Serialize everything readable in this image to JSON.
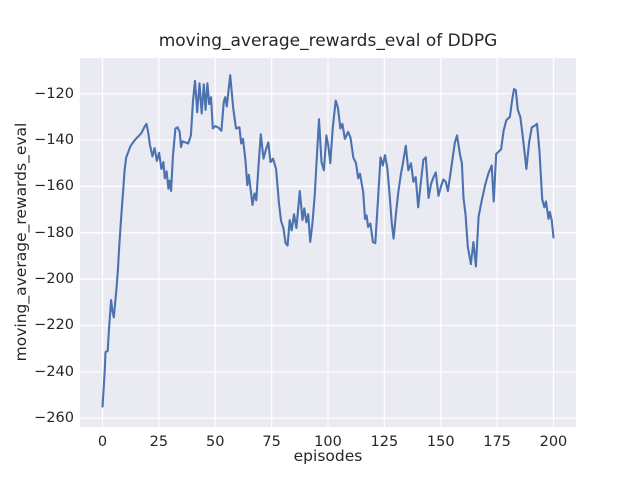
{
  "figure": {
    "title": "moving_average_rewards_eval of DDPG",
    "xlabel": "episodes",
    "ylabel": "moving_average_rewards_eval"
  },
  "chart_data": {
    "type": "line",
    "title": "moving_average_rewards_eval of DDPG",
    "xlabel": "episodes",
    "ylabel": "moving_average_rewards_eval",
    "xlim": [
      -10,
      210
    ],
    "ylim": [
      -263.8,
      -104.6
    ],
    "xticks": [
      0,
      25,
      50,
      75,
      100,
      125,
      150,
      175,
      200
    ],
    "yticks": [
      -120,
      -140,
      -160,
      -180,
      -200,
      -220,
      -240,
      -260
    ],
    "grid": true,
    "legend": false,
    "plot_bg": "#EAEAF2",
    "grid_color": "#FFFFFF",
    "text_color": "#262626",
    "series": [
      {
        "name": "moving_average_rewards_eval",
        "color": "#4C72B0",
        "linewidth": 2.1,
        "points": [
          [
            0,
            -255
          ],
          [
            0.5,
            -247
          ],
          [
            1,
            -239
          ],
          [
            1.3,
            -231.5
          ],
          [
            2.3,
            -231
          ],
          [
            2.8,
            -222
          ],
          [
            3.8,
            -209
          ],
          [
            4.3,
            -213
          ],
          [
            5,
            -216.5
          ],
          [
            5.6,
            -210
          ],
          [
            6.2,
            -204
          ],
          [
            6.8,
            -196
          ],
          [
            7.4,
            -186
          ],
          [
            8,
            -177
          ],
          [
            8.6,
            -169
          ],
          [
            9.2,
            -161
          ],
          [
            9.8,
            -153
          ],
          [
            10.5,
            -147.5
          ],
          [
            11.3,
            -145.5
          ],
          [
            12.2,
            -143
          ],
          [
            13.2,
            -141.5
          ],
          [
            14.3,
            -140
          ],
          [
            15.3,
            -139
          ],
          [
            16.3,
            -138
          ],
          [
            17.2,
            -137
          ],
          [
            18,
            -135.5
          ],
          [
            18.8,
            -134
          ],
          [
            19.5,
            -133
          ],
          [
            20.3,
            -137
          ],
          [
            21,
            -142
          ],
          [
            22.1,
            -147
          ],
          [
            23.1,
            -143.5
          ],
          [
            24.1,
            -149
          ],
          [
            25.1,
            -145.5
          ],
          [
            26.1,
            -152.5
          ],
          [
            27,
            -149.5
          ],
          [
            27.6,
            -156.5
          ],
          [
            28.4,
            -153.5
          ],
          [
            29.2,
            -161
          ],
          [
            29.8,
            -157.5
          ],
          [
            30.4,
            -162
          ],
          [
            31.2,
            -147
          ],
          [
            32.3,
            -135
          ],
          [
            33.3,
            -134.5
          ],
          [
            34.2,
            -136.5
          ],
          [
            34.8,
            -143
          ],
          [
            35.5,
            -140.5
          ],
          [
            36.7,
            -141
          ],
          [
            38,
            -141.5
          ],
          [
            39.2,
            -138
          ],
          [
            40.1,
            -123
          ],
          [
            41,
            -114.5
          ],
          [
            42,
            -128
          ],
          [
            43,
            -115.5
          ],
          [
            44,
            -128.5
          ],
          [
            44.9,
            -116
          ],
          [
            45.7,
            -127
          ],
          [
            46.5,
            -115.5
          ],
          [
            47.3,
            -124.5
          ],
          [
            48.1,
            -121.5
          ],
          [
            48.9,
            -135
          ],
          [
            50,
            -134
          ],
          [
            51.2,
            -134.5
          ],
          [
            52.7,
            -136
          ],
          [
            53.8,
            -123.5
          ],
          [
            54.4,
            -121.5
          ],
          [
            55.1,
            -125.5
          ],
          [
            56.6,
            -112
          ],
          [
            58,
            -126.5
          ],
          [
            59.2,
            -135
          ],
          [
            60.7,
            -134.5
          ],
          [
            61.5,
            -141.5
          ],
          [
            62.3,
            -139.5
          ],
          [
            63.4,
            -149
          ],
          [
            64.2,
            -159.5
          ],
          [
            64.9,
            -155
          ],
          [
            65.6,
            -160.5
          ],
          [
            66.5,
            -168
          ],
          [
            67.4,
            -163
          ],
          [
            68.2,
            -166
          ],
          [
            69.1,
            -152.5
          ],
          [
            70.2,
            -137.5
          ],
          [
            71.4,
            -148
          ],
          [
            72.5,
            -144
          ],
          [
            73.5,
            -141
          ],
          [
            74.5,
            -149.5
          ],
          [
            75.6,
            -148
          ],
          [
            77,
            -152.5
          ],
          [
            78.2,
            -167
          ],
          [
            79.2,
            -175
          ],
          [
            80.2,
            -178
          ],
          [
            81.2,
            -184.5
          ],
          [
            82.1,
            -185.5
          ],
          [
            83,
            -174.5
          ],
          [
            83.9,
            -179
          ],
          [
            84.9,
            -172
          ],
          [
            86,
            -178
          ],
          [
            87.5,
            -162
          ],
          [
            88.7,
            -174.5
          ],
          [
            89.5,
            -169.5
          ],
          [
            90.4,
            -175.5
          ],
          [
            91.2,
            -172
          ],
          [
            92.1,
            -184
          ],
          [
            93.1,
            -176
          ],
          [
            94.1,
            -164
          ],
          [
            95.1,
            -146
          ],
          [
            96,
            -131
          ],
          [
            97.1,
            -149.5
          ],
          [
            98.2,
            -153
          ],
          [
            99.3,
            -138
          ],
          [
            100.2,
            -143
          ],
          [
            101,
            -150
          ],
          [
            102.1,
            -135
          ],
          [
            103.4,
            -123
          ],
          [
            104.4,
            -126
          ],
          [
            105.5,
            -135
          ],
          [
            106.4,
            -133
          ],
          [
            107.5,
            -139.5
          ],
          [
            108.9,
            -136.5
          ],
          [
            110,
            -139
          ],
          [
            111.2,
            -147.5
          ],
          [
            112.4,
            -150
          ],
          [
            113.4,
            -156.5
          ],
          [
            114.2,
            -154.5
          ],
          [
            115.6,
            -162.5
          ],
          [
            116.4,
            -174
          ],
          [
            117.1,
            -172.5
          ],
          [
            117.8,
            -177.5
          ],
          [
            118.8,
            -176
          ],
          [
            119.9,
            -184
          ],
          [
            121,
            -184.5
          ],
          [
            122.2,
            -165
          ],
          [
            123.3,
            -147.5
          ],
          [
            124.3,
            -151
          ],
          [
            125.3,
            -146.5
          ],
          [
            126.3,
            -152
          ],
          [
            127.2,
            -162
          ],
          [
            128.3,
            -176
          ],
          [
            129.1,
            -182.5
          ],
          [
            130.1,
            -172
          ],
          [
            131.2,
            -162.5
          ],
          [
            132.3,
            -155
          ],
          [
            133.4,
            -149
          ],
          [
            134.5,
            -142.5
          ],
          [
            135.6,
            -153
          ],
          [
            136.8,
            -150
          ],
          [
            137.9,
            -158
          ],
          [
            138.9,
            -156
          ],
          [
            140,
            -169
          ],
          [
            141.2,
            -158
          ],
          [
            142.3,
            -148.5
          ],
          [
            143.4,
            -147.5
          ],
          [
            144.6,
            -165
          ],
          [
            145.7,
            -159
          ],
          [
            146.8,
            -156
          ],
          [
            147.8,
            -154
          ],
          [
            149,
            -164
          ],
          [
            150.1,
            -160
          ],
          [
            151.2,
            -157
          ],
          [
            152.2,
            -158
          ],
          [
            153.2,
            -162
          ],
          [
            154.4,
            -154
          ],
          [
            155.4,
            -147
          ],
          [
            156.3,
            -141
          ],
          [
            157.2,
            -138
          ],
          [
            158.6,
            -146.5
          ],
          [
            159.4,
            -150
          ],
          [
            160.1,
            -165
          ],
          [
            161,
            -172
          ],
          [
            162,
            -186
          ],
          [
            163.4,
            -193.5
          ],
          [
            164.5,
            -184
          ],
          [
            165.6,
            -194.5
          ],
          [
            166.8,
            -173
          ],
          [
            168.2,
            -166
          ],
          [
            169.7,
            -159.5
          ],
          [
            171.1,
            -154.5
          ],
          [
            172.6,
            -151
          ],
          [
            173.5,
            -166.5
          ],
          [
            174.6,
            -146
          ],
          [
            175.7,
            -145
          ],
          [
            176.8,
            -144
          ],
          [
            177.9,
            -136
          ],
          [
            179.1,
            -131.5
          ],
          [
            180.7,
            -130
          ],
          [
            181.7,
            -122.5
          ],
          [
            182.5,
            -118
          ],
          [
            183.3,
            -118.5
          ],
          [
            184.2,
            -127
          ],
          [
            185.3,
            -130
          ],
          [
            186.4,
            -138.5
          ],
          [
            188,
            -152.5
          ],
          [
            189.2,
            -141
          ],
          [
            190.4,
            -134.5
          ],
          [
            191.5,
            -134
          ],
          [
            192.7,
            -133
          ],
          [
            193.8,
            -145
          ],
          [
            195,
            -165.5
          ],
          [
            196,
            -169
          ],
          [
            196.7,
            -166.5
          ],
          [
            197.8,
            -174
          ],
          [
            198.4,
            -171
          ],
          [
            199.2,
            -174.5
          ],
          [
            200,
            -182
          ]
        ]
      }
    ]
  }
}
